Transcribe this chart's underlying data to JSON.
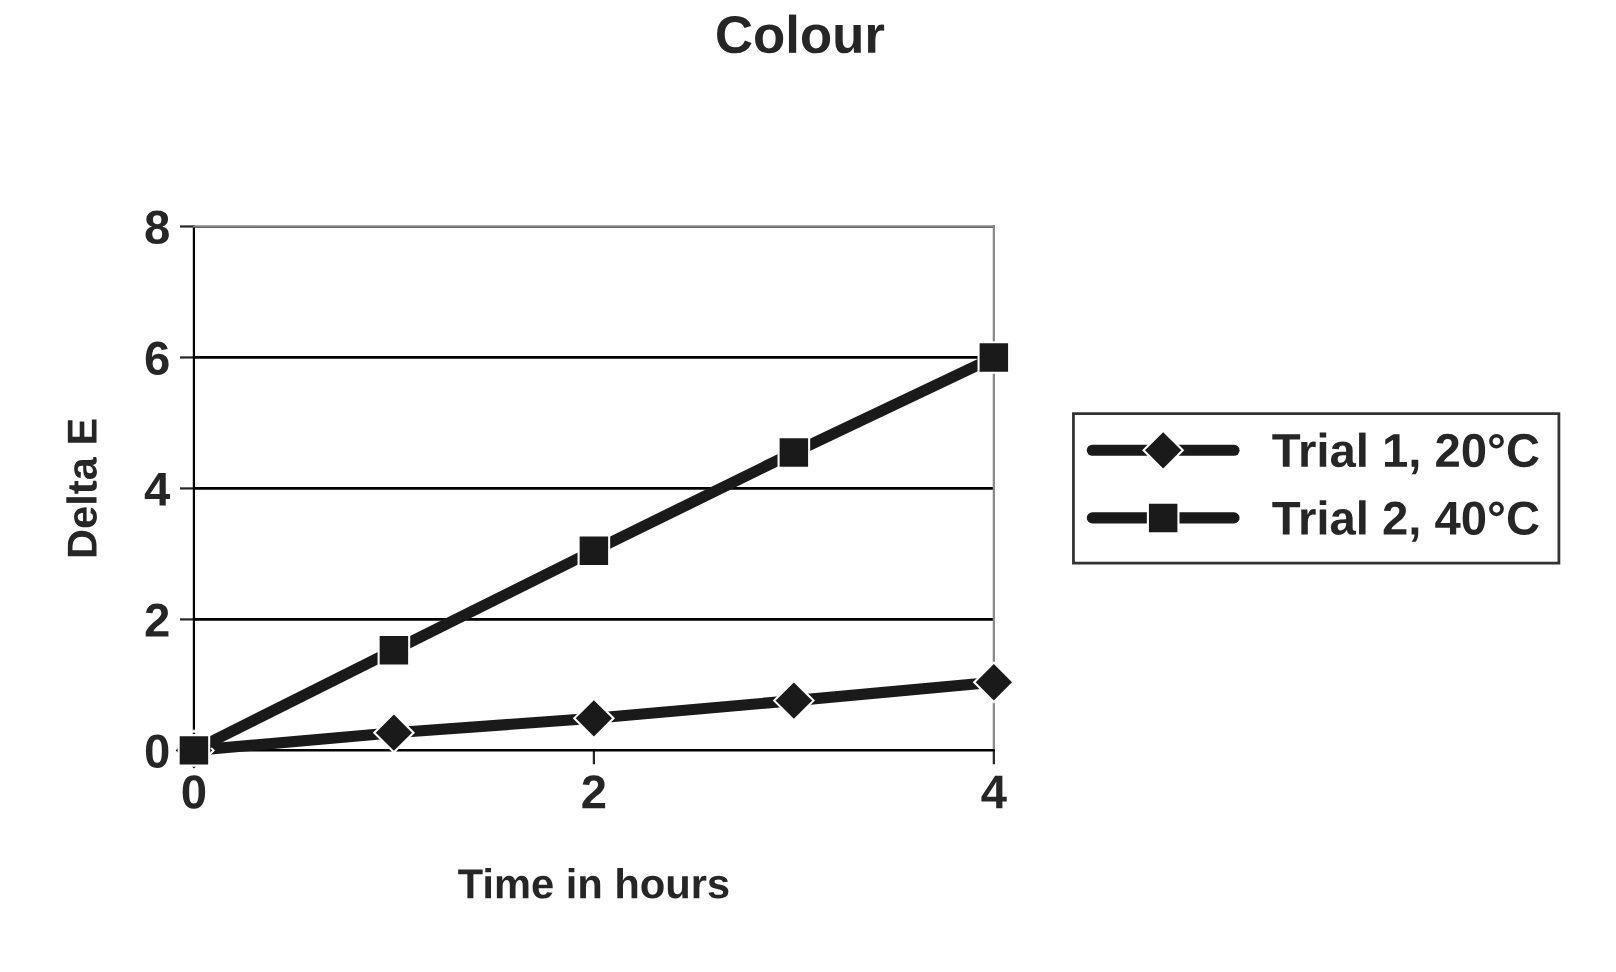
{
  "chart_data": {
    "type": "line",
    "title": "Colour",
    "xlabel": "Time in hours",
    "ylabel": "Delta E",
    "x": [
      0,
      1,
      2,
      3,
      4
    ],
    "series": [
      {
        "name": "Trial 1, 20°C",
        "color": "#1a1a1a",
        "marker": "diamond",
        "values": [
          0,
          0.27,
          0.49,
          0.76,
          1.04
        ]
      },
      {
        "name": "Trial 2, 40°C",
        "color": "#1a1a1a",
        "marker": "square",
        "values": [
          0,
          1.53,
          3.05,
          4.55,
          6.0
        ]
      }
    ],
    "xlim": [
      0,
      4
    ],
    "xticks": [
      0,
      2,
      4
    ],
    "ylim": [
      0,
      8
    ],
    "yticks": [
      0,
      2,
      4,
      6,
      8
    ],
    "grid": "y",
    "legend": "right",
    "line_style": "solid"
  }
}
